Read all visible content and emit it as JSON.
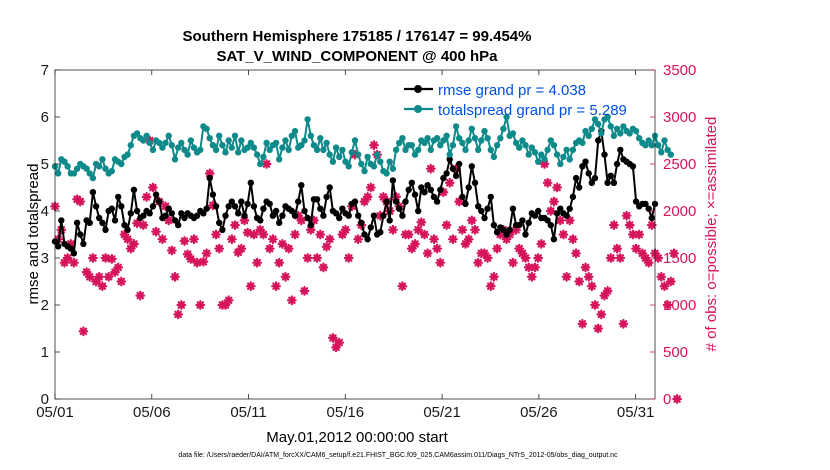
{
  "chart_data": {
    "type": "line",
    "title": "Southern Hemisphere 175185 / 176147 = 99.454%",
    "subtitle": "SAT_V_WIND_COMPONENT @ 400 hPa",
    "xlabel": "May.01,2012 00:00:00 start",
    "ylabel": "rmse and totalspread",
    "ylabel_right": "# of obs: o=possible; ×=assimilated",
    "footnote": "data file: /Users/raeder/DAI/ATM_forcXX/CAM6_setup/f.e21.FHIST_BGC.f09_025.CAM6assim.011/Diags_NTrS_2012-05/obs_diag_output.nc",
    "x_ticks": [
      "05/01",
      "05/06",
      "05/11",
      "05/16",
      "05/21",
      "05/26",
      "05/31"
    ],
    "x_tick_days": [
      1,
      6,
      11,
      16,
      21,
      26,
      31
    ],
    "xlim": [
      1,
      32
    ],
    "ylim": [
      0,
      7
    ],
    "y_ticks": [
      "0",
      "1",
      "2",
      "3",
      "4",
      "5",
      "6",
      "7"
    ],
    "ylim_right": [
      0,
      3500
    ],
    "y_ticks_right": [
      "0",
      "500",
      "1000",
      "1500",
      "2000",
      "2500",
      "3000",
      "3500"
    ],
    "legend_position": "top-right",
    "series": [
      {
        "name": "rmse grand pr = 4.038",
        "color": "#000000",
        "axis": "left",
        "marker": "filled-circle",
        "values": [
          3.35,
          3.25,
          3.8,
          3.3,
          3.25,
          3.2,
          3.1,
          3.75,
          3.5,
          3.3,
          3.8,
          3.75,
          4.4,
          4.1,
          3.85,
          3.75,
          3.6,
          4.0,
          4.05,
          3.8,
          4.3,
          4.1,
          3.7,
          3.6,
          3.95,
          4.45,
          4.0,
          3.85,
          3.9,
          4.0,
          3.95,
          4.1,
          4.35,
          4.2,
          3.85,
          3.9,
          4.05,
          3.95,
          3.8,
          3.7,
          3.95,
          3.85,
          3.95,
          3.9,
          3.85,
          3.9,
          4.0,
          3.95,
          4.05,
          4.7,
          4.35,
          4.1,
          3.75,
          3.6,
          3.9,
          4.1,
          4.2,
          4.1,
          3.95,
          4.2,
          3.9,
          4.15,
          4.6,
          4.1,
          3.85,
          3.8,
          4.05,
          4.2,
          4.15,
          3.9,
          4.0,
          3.75,
          3.9,
          4.1,
          4.05,
          4.0,
          3.9,
          4.2,
          4.55,
          4.0,
          3.85,
          3.7,
          4.25,
          4.25,
          4.05,
          3.9,
          4.3,
          4.5,
          4.0,
          3.95,
          3.85,
          4.05,
          3.95,
          3.9,
          4.15,
          4.2,
          3.9,
          3.75,
          3.5,
          3.4,
          3.65,
          3.9,
          3.5,
          3.55,
          3.9,
          4.2,
          3.8,
          4.65,
          4.2,
          4.05,
          3.9,
          4.2,
          4.45,
          4.6,
          4.35,
          4.0,
          4.5,
          4.4,
          4.55,
          4.45,
          4.3,
          4.2,
          4.45,
          4.7,
          4.8,
          5.1,
          4.9,
          4.75,
          5.0,
          4.3,
          4.15,
          4.5,
          4.95,
          4.6,
          4.1,
          4.0,
          3.85,
          4.05,
          4.3,
          3.7,
          3.55,
          3.65,
          3.6,
          3.5,
          3.6,
          4.05,
          3.7,
          3.7,
          3.8,
          3.5,
          3.75,
          3.95,
          3.9,
          4.0,
          3.85,
          3.85,
          3.8,
          3.7,
          3.4,
          3.95,
          4.05,
          3.95,
          3.9,
          4.05,
          4.3,
          4.7,
          4.5,
          4.95,
          5.05,
          4.8,
          4.6,
          4.7,
          5.5,
          5.7,
          5.2,
          4.6,
          4.75,
          4.6,
          5.0,
          5.3,
          5.1,
          5.05,
          5.0,
          4.95,
          4.2,
          4.1,
          4.15,
          4.15,
          4.05,
          3.85,
          4.15
        ]
      },
      {
        "name": "totalspread grand pr = 5.289",
        "color": "#0e8a8a",
        "axis": "left",
        "marker": "filled-circle",
        "values": [
          4.95,
          4.8,
          5.1,
          5.05,
          4.95,
          4.8,
          4.8,
          4.9,
          5.0,
          4.95,
          4.9,
          4.8,
          4.7,
          5.0,
          4.95,
          5.1,
          4.9,
          4.8,
          4.85,
          5.1,
          5.05,
          5.0,
          5.15,
          5.2,
          5.4,
          5.6,
          5.65,
          5.55,
          5.5,
          5.6,
          5.45,
          5.3,
          5.5,
          5.45,
          5.35,
          5.45,
          5.6,
          5.4,
          5.1,
          5.35,
          5.45,
          5.3,
          5.2,
          5.5,
          5.35,
          5.25,
          5.3,
          5.8,
          5.75,
          5.55,
          5.4,
          5.3,
          5.6,
          5.4,
          5.25,
          5.5,
          5.35,
          5.6,
          5.25,
          5.5,
          5.3,
          5.35,
          5.45,
          5.35,
          5.2,
          5.0,
          5.15,
          5.45,
          5.3,
          5.4,
          5.45,
          5.1,
          5.35,
          5.5,
          5.3,
          5.6,
          5.7,
          5.35,
          5.4,
          5.5,
          5.95,
          5.6,
          5.4,
          5.3,
          5.55,
          5.3,
          5.45,
          5.2,
          5.05,
          5.35,
          5.15,
          5.3,
          5.05,
          4.95,
          5.25,
          5.5,
          5.2,
          5.0,
          4.85,
          5.15,
          5.0,
          4.95,
          5.2,
          5.05,
          4.85,
          4.8,
          5.05,
          4.9,
          5.3,
          5.45,
          5.55,
          5.3,
          5.4,
          5.4,
          5.2,
          5.3,
          5.5,
          5.45,
          5.55,
          5.3,
          5.5,
          5.55,
          5.4,
          5.5,
          5.6,
          5.2,
          5.4,
          5.8,
          5.55,
          5.45,
          5.3,
          5.5,
          5.75,
          5.55,
          5.3,
          5.5,
          5.7,
          5.55,
          5.3,
          5.15,
          5.4,
          5.55,
          5.75,
          6.0,
          5.6,
          5.65,
          5.45,
          5.35,
          5.5,
          5.4,
          5.2,
          5.35,
          5.25,
          5.05,
          5.2,
          5.1,
          5.3,
          5.5,
          5.4,
          5.2,
          5.0,
          5.15,
          5.3,
          5.1,
          5.3,
          5.45,
          5.5,
          5.45,
          5.7,
          5.6,
          5.75,
          5.95,
          5.85,
          5.65,
          5.95,
          6.0,
          5.8,
          5.6,
          5.75,
          5.65,
          5.8,
          5.7,
          5.65,
          5.75,
          5.7,
          5.55,
          5.45,
          5.4,
          5.5,
          5.4,
          5.6,
          5.4,
          5.25,
          5.5,
          5.3,
          5.2
        ]
      },
      {
        "name": "obs assimilated",
        "color": "#d6145c",
        "axis": "right",
        "marker": "cross",
        "values": [
          2050,
          1700,
          1800,
          1450,
          1500,
          1650,
          1450,
          2125,
          2100,
          720,
          1350,
          1300,
          1500,
          1250,
          1300,
          1200,
          1500,
          1300,
          1490,
          1350,
          1400,
          1250,
          1750,
          1700,
          1600,
          1650,
          1870,
          1100,
          1850,
          2150,
          2750,
          2250,
          1780,
          2100,
          1700,
          2050,
          1900,
          1580,
          1300,
          900,
          1000,
          1680,
          1540,
          1490,
          1700,
          1450,
          1000,
          1460,
          1550,
          2400,
          2060,
          1750,
          1600,
          1000,
          1000,
          1050,
          1700,
          1850,
          1560,
          1600,
          1900,
          1770,
          1200,
          1750,
          1450,
          1800,
          1750,
          2500,
          1600,
          1700,
          1200,
          1450,
          1650,
          1300,
          1600,
          1050,
          1750,
          1950,
          1900,
          1150,
          1500,
          1800,
          1900,
          1500,
          1750,
          1400,
          1620,
          1700,
          650,
          550,
          600,
          1750,
          1800,
          1500,
          2050,
          2600,
          1700,
          1850,
          2100,
          2150,
          2250,
          2700,
          2600,
          1950,
          2150,
          2100,
          2000,
          1800,
          2150,
          2050,
          1200,
          1750,
          1750,
          1600,
          1650,
          1800,
          1880,
          1750,
          1550,
          2450,
          1700,
          1600,
          1450,
          2200,
          1850,
          2300,
          1700,
          2450,
          2100,
          1800,
          1650,
          1700,
          1900,
          1800,
          1450,
          1550,
          1550,
          1500,
          1200,
          1300,
          1600,
          1750,
          1800,
          1700,
          1750,
          1450,
          1800,
          1600,
          1550,
          1500,
          1400,
          1300,
          1400,
          1500,
          1650,
          2500,
          2300,
          2000,
          2100,
          2250,
          1900,
          1750,
          1300,
          1900,
          1700,
          1550,
          1250,
          800,
          1400,
          1300,
          1200,
          1000,
          750,
          900,
          1100,
          1150,
          1500,
          1850,
          1600,
          1500,
          800,
          1950,
          1850,
          1750,
          1600,
          1750,
          1550,
          1500,
          1450,
          1850,
          1550,
          1500,
          1300,
          1200,
          1000,
          1250,
          1550,
          0
        ]
      }
    ]
  }
}
